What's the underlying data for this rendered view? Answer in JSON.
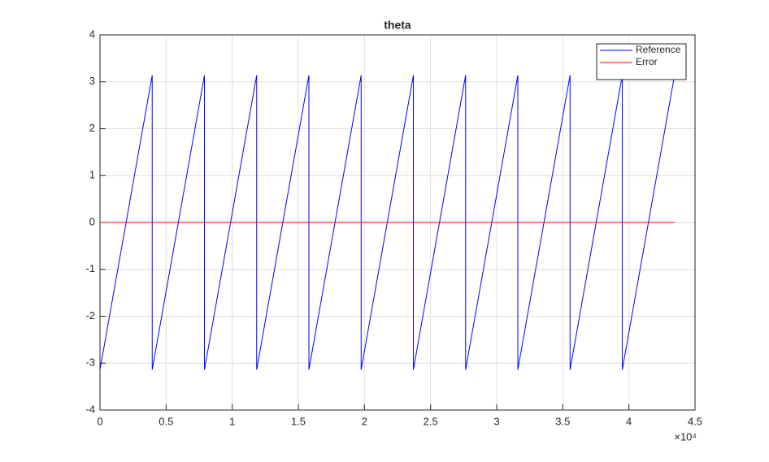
{
  "chart_data": {
    "type": "line",
    "title": "theta",
    "x": [
      0,
      3950,
      3950,
      7900,
      7900,
      11850,
      11850,
      15800,
      15800,
      19750,
      19750,
      23700,
      23700,
      27650,
      27650,
      31600,
      31600,
      35550,
      35550,
      39500,
      39500,
      43450
    ],
    "series": [
      {
        "name": "Reference",
        "color": "#0000ff",
        "values": [
          -3.14,
          3.14,
          -3.14,
          3.14,
          -3.14,
          3.14,
          -3.14,
          3.14,
          -3.14,
          3.14,
          -3.14,
          3.14,
          -3.14,
          3.14,
          -3.14,
          3.14,
          -3.14,
          3.14,
          -3.14,
          3.14,
          -3.14,
          3.14
        ]
      },
      {
        "name": "Error",
        "color": "#ff0000",
        "values": [
          0,
          0,
          0,
          0,
          0,
          0,
          0,
          0,
          0,
          0,
          0,
          0,
          0,
          0,
          0,
          0,
          0,
          0,
          0,
          0,
          0,
          0
        ]
      }
    ],
    "xlim": [
      0,
      45000
    ],
    "xticks": [
      0,
      {
        "value": 5000,
        "label": "0.5"
      },
      {
        "value": 10000,
        "label": "1"
      },
      {
        "value": 15000,
        "label": "1.5"
      },
      {
        "value": 20000,
        "label": "2"
      },
      {
        "value": 25000,
        "label": "2.5"
      },
      {
        "value": 30000,
        "label": "3"
      },
      {
        "value": 35000,
        "label": "3.5"
      },
      {
        "value": 40000,
        "label": "4"
      },
      {
        "value": 45000,
        "label": "4.5"
      }
    ],
    "x_exponent": "×10⁴",
    "ylim": [
      -4,
      4
    ],
    "yticks": [
      -4,
      -3,
      -2,
      -1,
      0,
      1,
      2,
      3,
      4
    ],
    "grid": true,
    "legend": "northeast"
  }
}
